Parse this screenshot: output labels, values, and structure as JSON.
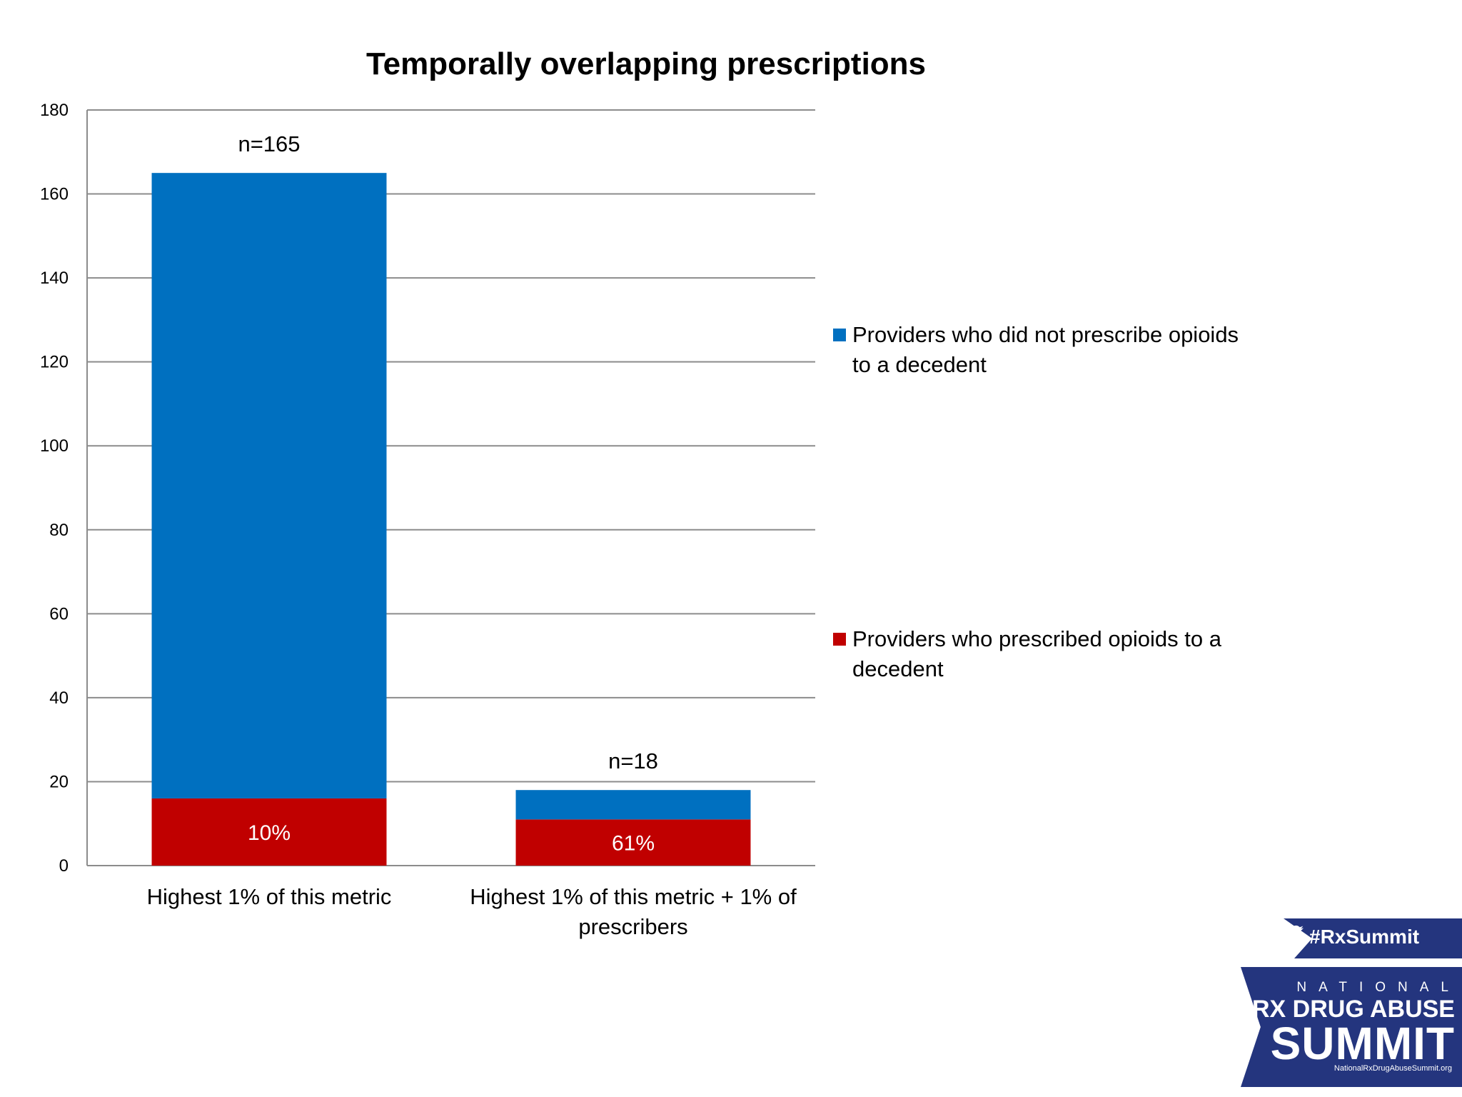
{
  "chart_data": {
    "type": "bar",
    "stacked": true,
    "title": "Temporally overlapping prescriptions",
    "xlabel": "",
    "ylabel": "",
    "categories": [
      "Highest 1% of this metric",
      "Highest 1% of this metric + 1% of prescribers"
    ],
    "ylim": [
      0,
      180
    ],
    "yticks": [
      0,
      20,
      40,
      60,
      80,
      100,
      120,
      140,
      160,
      180
    ],
    "grid": true,
    "legend_position": "right",
    "series": [
      {
        "name": "Providers who prescribed opioids to a decedent",
        "color": "#c00000",
        "values": [
          16,
          11
        ],
        "data_labels": [
          "10%",
          "61%"
        ]
      },
      {
        "name": "Providers who did not prescribe opioids to a decedent",
        "color": "#0070c0",
        "values": [
          149,
          7
        ]
      }
    ],
    "totals_labels": [
      "n=165",
      "n=18"
    ],
    "legend_order": [
      1,
      0
    ]
  },
  "logo": {
    "hashtag": "#RxSummit",
    "line1": "NATIONAL",
    "line2": "RX DRUG ABUSE",
    "line3": "SUMMIT",
    "url": "NationalRxDrugAbuseSummit.org",
    "color": "#24357e"
  }
}
